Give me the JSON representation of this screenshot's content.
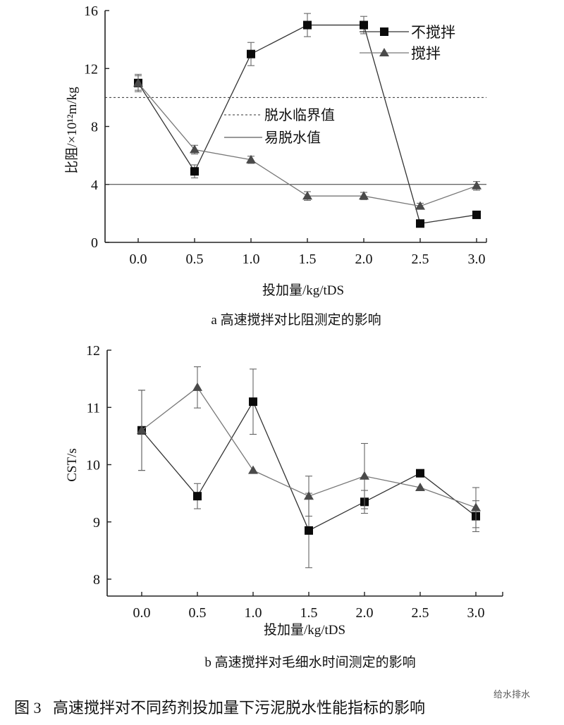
{
  "chart_data": [
    {
      "type": "line",
      "title": "a 高速搅拌对比阻测定的影响",
      "xlabel": "投加量/kg/tDS",
      "ylabel": "比阻/×10¹²m/kg",
      "x": [
        0.0,
        0.5,
        1.0,
        1.5,
        2.0,
        2.5,
        3.0
      ],
      "x_tick_labels": [
        "0.0",
        "0.5",
        "1.0",
        "1.5",
        "2.0",
        "2.5",
        "3.0"
      ],
      "ylim": [
        0,
        16
      ],
      "y_ticks": [
        0,
        4,
        8,
        12,
        16
      ],
      "y_tick_labels": [
        "0",
        "4",
        "8",
        "12",
        "16"
      ],
      "grid": false,
      "legend_position": "top-right",
      "series": [
        {
          "name": "不搅拌",
          "marker": "square",
          "color": "#111111",
          "values": [
            11.0,
            4.9,
            13.0,
            15.0,
            15.0,
            1.3,
            1.9
          ],
          "errors": [
            0.6,
            0.45,
            0.8,
            0.8,
            0.6,
            0,
            0
          ]
        },
        {
          "name": "搅拌",
          "marker": "triangle",
          "color": "#555555",
          "values": [
            11.0,
            6.4,
            5.7,
            3.2,
            3.2,
            2.5,
            3.9
          ],
          "errors": [
            0.5,
            0.3,
            0.25,
            0.3,
            0.25,
            0.2,
            0.3
          ]
        }
      ],
      "reference_lines": [
        {
          "name": "脱水临界值",
          "value": 10,
          "style": "dashed"
        },
        {
          "name": "易脱水值",
          "value": 4,
          "style": "solid"
        }
      ]
    },
    {
      "type": "line",
      "title": "b 高速搅拌对毛细水时间测定的影响",
      "xlabel": "投加量/kg/tDS",
      "ylabel": "CST/s",
      "x": [
        0.0,
        0.5,
        1.0,
        1.5,
        2.0,
        2.5,
        3.0
      ],
      "x_tick_labels": [
        "0.0",
        "0.5",
        "1.0",
        "1.5",
        "2.0",
        "2.5",
        "3.0"
      ],
      "ylim": [
        7.7,
        12
      ],
      "y_ticks": [
        8,
        9,
        10,
        11,
        12
      ],
      "y_tick_labels": [
        "8",
        "9",
        "10",
        "11",
        "12"
      ],
      "grid": false,
      "series": [
        {
          "name": "不搅拌",
          "marker": "square",
          "color": "#111111",
          "values": [
            10.6,
            9.45,
            11.1,
            8.85,
            9.35,
            9.85,
            9.1
          ],
          "errors": [
            0.7,
            0.22,
            0.57,
            0.65,
            0.2,
            0,
            0.27
          ]
        },
        {
          "name": "搅拌",
          "marker": "triangle",
          "color": "#555555",
          "values": [
            10.6,
            11.35,
            9.9,
            9.45,
            9.8,
            9.6,
            9.25
          ],
          "errors": [
            0.7,
            0.36,
            0,
            0.35,
            0.57,
            0,
            0.35
          ]
        }
      ]
    }
  ],
  "figure_caption": "图 3   高速搅拌对不同药剂投加量下污泥脱水性能指标的影响",
  "watermark": "给水排水"
}
